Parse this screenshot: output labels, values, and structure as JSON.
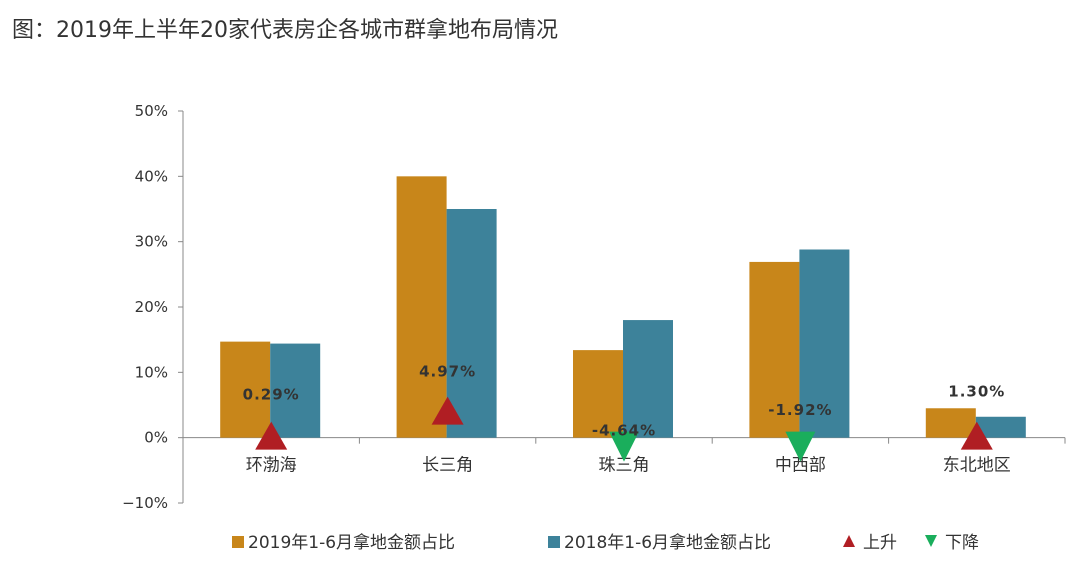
{
  "title": "图：2019年上半年20家代表房企各城市群拿地布局情况",
  "chart_data": {
    "type": "bar",
    "categories": [
      "环渤海",
      "长三角",
      "珠三角",
      "中西部",
      "东北地区"
    ],
    "series": [
      {
        "name": "2019年1-6月拿地金额占比",
        "color": "#C8861A",
        "values": [
          14.7,
          40.0,
          13.4,
          26.9,
          4.5
        ]
      },
      {
        "name": "2018年1-6月拿地金额占比",
        "color": "#3D829A",
        "values": [
          14.4,
          35.0,
          18.0,
          28.8,
          3.2
        ]
      }
    ],
    "changes": [
      {
        "category": "环渤海",
        "label": "0.29%",
        "direction": "up"
      },
      {
        "category": "长三角",
        "label": "4.97%",
        "direction": "up"
      },
      {
        "category": "珠三角",
        "label": "-4.64%",
        "direction": "down"
      },
      {
        "category": "中西部",
        "label": "-1.92%",
        "direction": "down"
      },
      {
        "category": "东北地区",
        "label": "1.30%",
        "direction": "up"
      }
    ],
    "yticks": [
      "50%",
      "40%",
      "30%",
      "20%",
      "10%",
      "0%",
      "−10%"
    ],
    "ylim": [
      -10,
      50
    ],
    "legend": [
      {
        "label": "2019年1-6月拿地金额占比",
        "kind": "square",
        "color": "#C8861A"
      },
      {
        "label": "2018年1-6月拿地金额占比",
        "kind": "square",
        "color": "#3D829A"
      },
      {
        "label": "上升",
        "kind": "up",
        "color": "#B01E23"
      },
      {
        "label": "下降",
        "kind": "down",
        "color": "#1AAE5C"
      }
    ],
    "legend_position": "bottom"
  }
}
